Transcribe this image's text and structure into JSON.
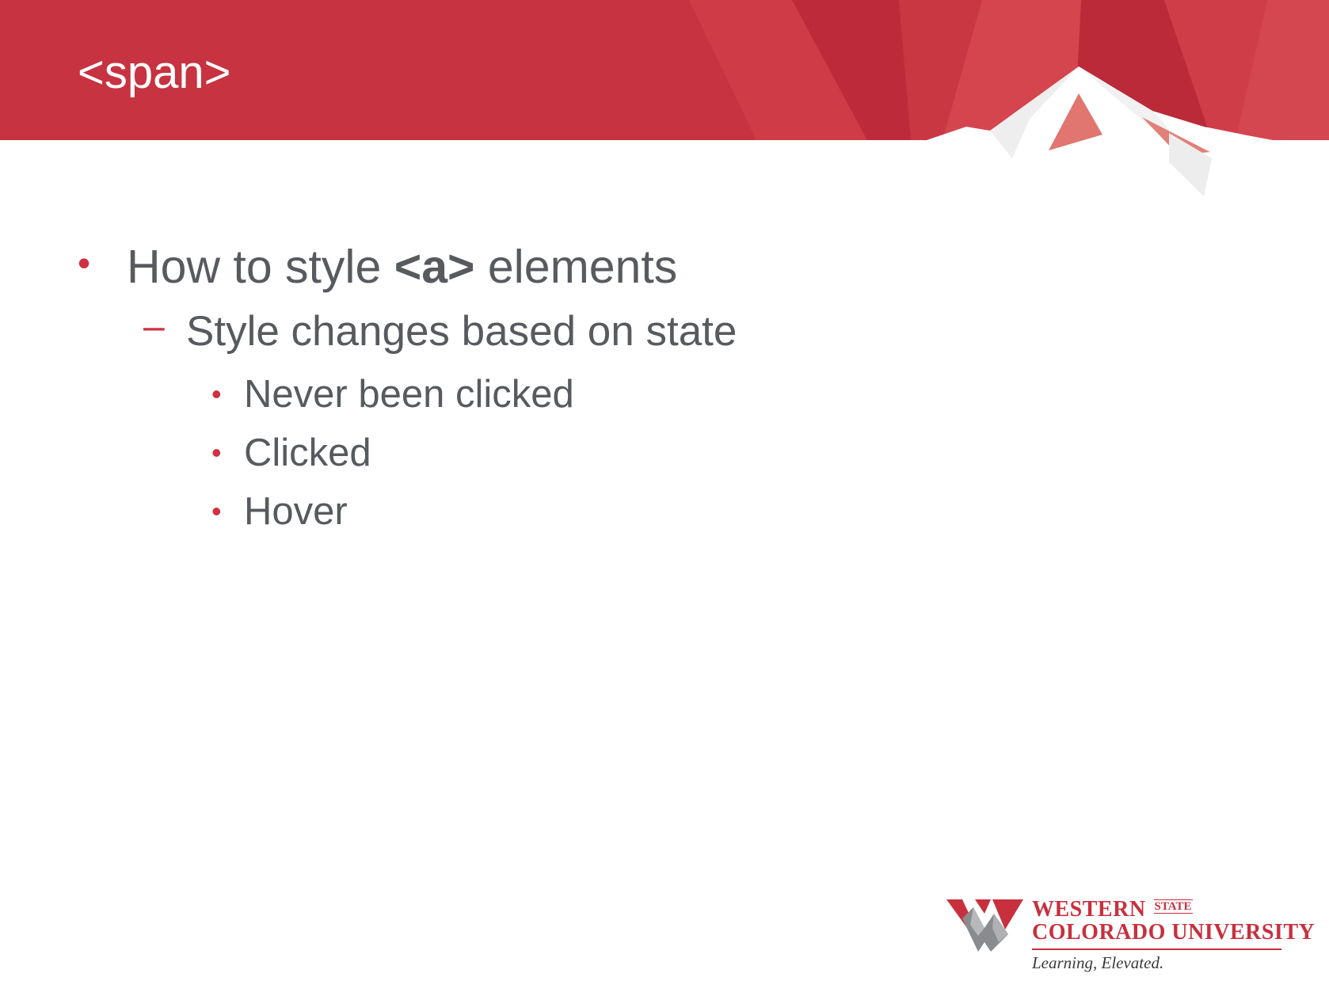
{
  "slide": {
    "title": "<span>",
    "colors": {
      "banner": "#c73340",
      "accent": "#d0303f",
      "text": "#575a5f"
    }
  },
  "bullets": {
    "level1": {
      "marker": "•",
      "before": "How to style ",
      "code": "<a>",
      "after": " elements"
    },
    "level2": {
      "marker": "–",
      "text": "Style changes based on state"
    },
    "level3": [
      {
        "marker": "•",
        "text": "Never been clicked"
      },
      {
        "marker": "•",
        "text": "Clicked"
      },
      {
        "marker": "•",
        "text": "Hover"
      }
    ]
  },
  "logo": {
    "line1": "WESTERN",
    "state": "STATE",
    "line2": "COLORADO UNIVERSITY",
    "tagline": "Learning, Elevated.",
    "icon": "mountain-w-icon"
  }
}
